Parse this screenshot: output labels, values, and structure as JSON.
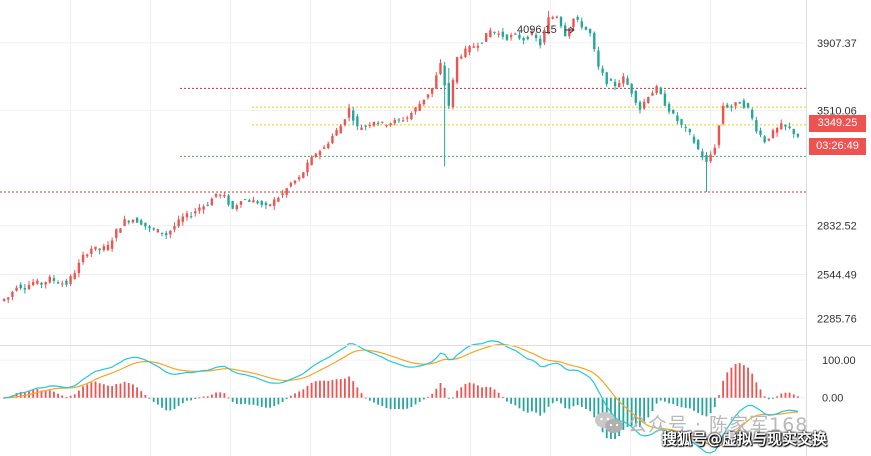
{
  "chart_data": [
    {
      "type": "candlestick",
      "ylim": [
        2130,
        4160
      ],
      "price_axis_labels": [
        "3907.37",
        "3510.06",
        "2832.52",
        "2544.49",
        "2285.76"
      ],
      "price_axis_values": [
        3907.37,
        3510.06,
        2832.52,
        2544.49,
        2285.76
      ],
      "peak_annotation": "4096.15",
      "current_price": "3349.25",
      "countdown": "03:26:49",
      "reference_lines": [
        {
          "value": 3640,
          "color": "#d32f2f",
          "style": "dotted",
          "extent": "partial"
        },
        {
          "value": 3530,
          "color": "#f5c518",
          "style": "dotted",
          "extent": "partial"
        },
        {
          "value": 3425,
          "color": "#f5c518",
          "style": "dotted",
          "extent": "partial"
        },
        {
          "value": 3240,
          "color": "#4caf50",
          "style": "dotted",
          "extent": "partial"
        },
        {
          "value": 3030,
          "color": "#d32f2f",
          "style": "dotted",
          "extent": "full"
        }
      ],
      "close_series": [
        2410,
        2480,
        2470,
        2500,
        2490,
        2520,
        2500,
        2490,
        2560,
        2650,
        2700,
        2690,
        2710,
        2800,
        2860,
        2870,
        2850,
        2810,
        2800,
        2780,
        2830,
        2880,
        2900,
        2940,
        2960,
        3020,
        3000,
        2930,
        2990,
        2980,
        2970,
        2940,
        2980,
        3020,
        3080,
        3110,
        3190,
        3260,
        3290,
        3360,
        3420,
        3520,
        3410,
        3420,
        3450,
        3430,
        3440,
        3450,
        3470,
        3520,
        3580,
        3640,
        3780,
        3540,
        3820,
        3860,
        3890,
        3920,
        3980,
        3960,
        3940,
        3950,
        3930,
        3960,
        3900,
        4050,
        4070,
        3960,
        4050,
        4010,
        3960,
        3760,
        3680,
        3660,
        3700,
        3620,
        3520,
        3600,
        3640,
        3550,
        3480,
        3420,
        3370,
        3280,
        3200,
        3300,
        3540,
        3530,
        3560,
        3520,
        3400,
        3330,
        3380,
        3420,
        3400,
        3360
      ],
      "colors": {
        "up": "#ef5350",
        "down": "#26a69a"
      }
    },
    {
      "type": "macd",
      "ylim": [
        -155,
        135
      ],
      "axis_labels": [
        "100.00",
        "0.00"
      ],
      "axis_values": [
        100,
        0
      ],
      "colors": {
        "dif": "#26c6da",
        "dea": "#f5a623",
        "hist_up": "#ef5350",
        "hist_down": "#26a69a"
      }
    }
  ],
  "watermark": {
    "line1": "公众号 · 陈家军168",
    "line2": "搜狐号@虚拟与现实交换"
  }
}
